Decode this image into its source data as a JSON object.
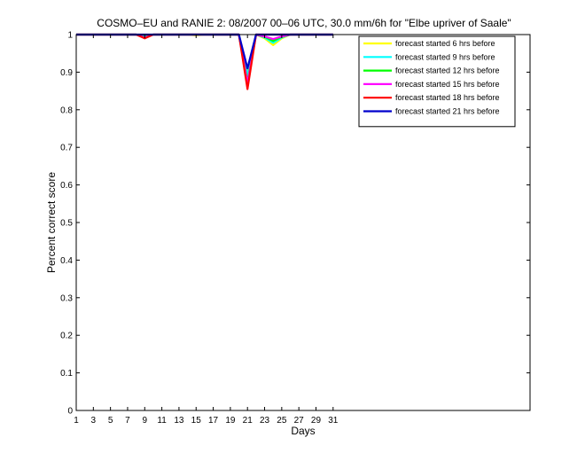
{
  "chart_data": {
    "type": "line",
    "title": "COSMO–EU and RANIE 2: 08/2007 00–06 UTC, 30.0 mm/6h for \"Elbe upriver of Saale\"",
    "xlabel": "Days",
    "ylabel": "Percent correct score",
    "xlim": [
      1,
      54
    ],
    "ylim": [
      0,
      1
    ],
    "xticks": [
      1,
      3,
      5,
      7,
      9,
      11,
      13,
      15,
      17,
      19,
      21,
      23,
      25,
      27,
      29,
      31
    ],
    "yticks": [
      0,
      0.1,
      0.2,
      0.3,
      0.4,
      0.5,
      0.6,
      0.7,
      0.8,
      0.9,
      1
    ],
    "ytick_labels": [
      "0",
      "0.1",
      "0.2",
      "0.3",
      "0.4",
      "0.5",
      "0.6",
      "0.7",
      "0.8",
      "0.9",
      "1"
    ],
    "grid": false,
    "legend_position": "top-right",
    "x": [
      1,
      2,
      3,
      4,
      5,
      6,
      7,
      8,
      9,
      10,
      11,
      12,
      13,
      14,
      15,
      16,
      17,
      18,
      19,
      20,
      21,
      22,
      23,
      24,
      25,
      26,
      27,
      28,
      29,
      30,
      31
    ],
    "series": [
      {
        "name": "forecast started 6 hrs before",
        "color": "#ffff00",
        "values": [
          1,
          1,
          1,
          1,
          1,
          1,
          1,
          1,
          0.995,
          1,
          1,
          1,
          1,
          1,
          0.998,
          1,
          1,
          1,
          1,
          1,
          0.895,
          1,
          0.99,
          0.972,
          0.99,
          1,
          1,
          1,
          1,
          1,
          1
        ]
      },
      {
        "name": "forecast started 9 hrs before",
        "color": "#00ffff",
        "values": [
          1,
          1,
          1,
          1,
          1,
          1,
          1,
          1,
          0.995,
          1,
          1,
          1,
          1,
          1,
          1,
          1,
          1,
          1,
          1,
          1,
          0.89,
          1,
          0.992,
          0.978,
          0.992,
          1,
          1,
          1,
          1,
          1,
          1
        ]
      },
      {
        "name": "forecast started 12 hrs before",
        "color": "#00ff00",
        "values": [
          1,
          1,
          1,
          1,
          1,
          1,
          1,
          1,
          0.993,
          1,
          1,
          1,
          1,
          1,
          1,
          1,
          1,
          1,
          1,
          1,
          0.875,
          1,
          0.994,
          0.983,
          0.994,
          1,
          1,
          1,
          1,
          1,
          1
        ]
      },
      {
        "name": "forecast started 15 hrs before",
        "color": "#ff00ff",
        "values": [
          1,
          1,
          1,
          1,
          1,
          1,
          1,
          1,
          0.992,
          1,
          1,
          1,
          1,
          1,
          1,
          1,
          1,
          1,
          1,
          1,
          0.87,
          1,
          0.995,
          0.988,
          0.995,
          1,
          1,
          1,
          1,
          1,
          1
        ]
      },
      {
        "name": "forecast started 18 hrs before",
        "color": "#ff0000",
        "values": [
          1,
          1,
          1,
          1,
          1,
          1,
          1,
          1,
          0.99,
          1,
          1,
          1,
          1,
          1,
          1,
          1,
          1,
          1,
          1,
          1,
          0.855,
          1,
          1,
          1,
          1,
          1,
          1,
          1,
          1,
          1,
          1
        ]
      },
      {
        "name": "forecast started 21 hrs before",
        "color": "#0000cc",
        "values": [
          1,
          1,
          1,
          1,
          1,
          1,
          1,
          1,
          1,
          1,
          1,
          1,
          1,
          1,
          1,
          1,
          1,
          1,
          1,
          1,
          0.91,
          1,
          1,
          1,
          1,
          1,
          1,
          1,
          1,
          1,
          1
        ]
      }
    ]
  }
}
